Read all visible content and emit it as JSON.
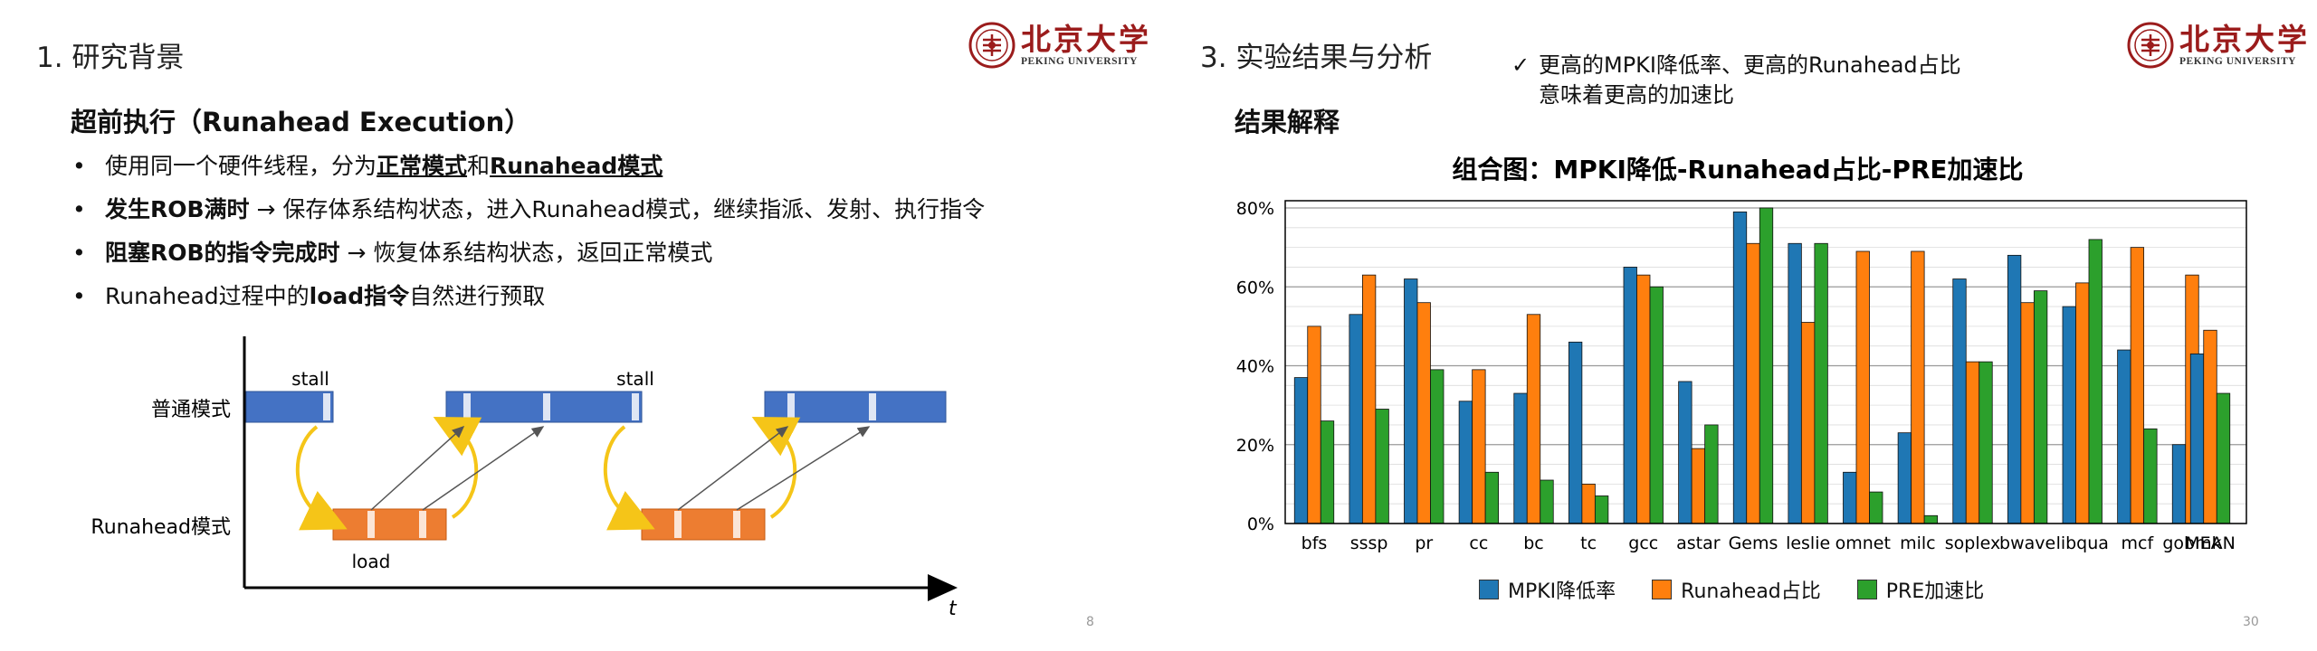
{
  "left_slide": {
    "section_title": "1. 研究背景",
    "logo": {
      "cn": "北京大学",
      "en": "PEKING UNIVERSITY"
    },
    "heading": "超前执行（Runahead Execution）",
    "bullets": [
      {
        "a": "使用同一个硬件线程，分为",
        "b": "正常模式",
        "c": "和",
        "d": "Runahead模式"
      },
      {
        "a": "发生ROB满时",
        "b": " → 保存体系结构状态，进入Runahead模式，继续指派、发射、执行指令"
      },
      {
        "a": "阻塞ROB的指令完成时",
        "b": " → 恢复体系结构状态，返回正常模式"
      },
      {
        "a": "Runahead过程中的",
        "b": "load指令",
        "c": "自然进行预取"
      }
    ],
    "diagram": {
      "normal_mode_label": "普通模式",
      "runahead_mode_label": "Runahead模式",
      "stall_label_1": "stall",
      "stall_label_2": "stall",
      "load_label": "load",
      "time_label": "t",
      "colors": {
        "normal": "#4472c4",
        "runahead": "#ed7d31",
        "arc": "#f5c518"
      }
    },
    "page_number": "8"
  },
  "right_slide": {
    "section_title": "3. 实验结果与分析",
    "logo": {
      "cn": "北京大学",
      "en": "PEKING UNIVERSITY"
    },
    "check_note": {
      "line1": "更高的MPKI降低率、更高的Runahead占比",
      "line2": "意味着更高的加速比"
    },
    "heading": "结果解释",
    "page_number": "30"
  },
  "chart_data": {
    "type": "bar",
    "title": "组合图：MPKI降低-Runahead占比-PRE加速比",
    "categories": [
      "bfs",
      "sssp",
      "pr",
      "cc",
      "bc",
      "tc",
      "gcc",
      "astar",
      "Gems",
      "leslie",
      "omnet",
      "milc",
      "soplex",
      "bwave",
      "libqua",
      "mcf",
      "gobmk",
      "MEAN"
    ],
    "series": [
      {
        "name": "MPKI降低率",
        "color": "#1f77b4",
        "values": [
          37,
          53,
          62,
          31,
          33,
          46,
          65,
          36,
          79,
          71,
          13,
          23,
          62,
          68,
          55,
          44,
          20,
          43
        ]
      },
      {
        "name": "Runahead占比",
        "color": "#ff7f0e",
        "values": [
          50,
          63,
          56,
          39,
          53,
          10,
          63,
          19,
          71,
          51,
          69,
          69,
          41,
          56,
          61,
          70,
          63,
          49
        ]
      },
      {
        "name": "PRE加速比",
        "color": "#2ca02c",
        "values": [
          26,
          29,
          39,
          13,
          11,
          7,
          60,
          25,
          80,
          71,
          8,
          2,
          41,
          59,
          72,
          24,
          19,
          33
        ]
      }
    ],
    "ylim": [
      0,
      80
    ],
    "yticks": [
      "0%",
      "20%",
      "40%",
      "60%",
      "80%"
    ],
    "grid": true,
    "legend_position": "bottom"
  }
}
